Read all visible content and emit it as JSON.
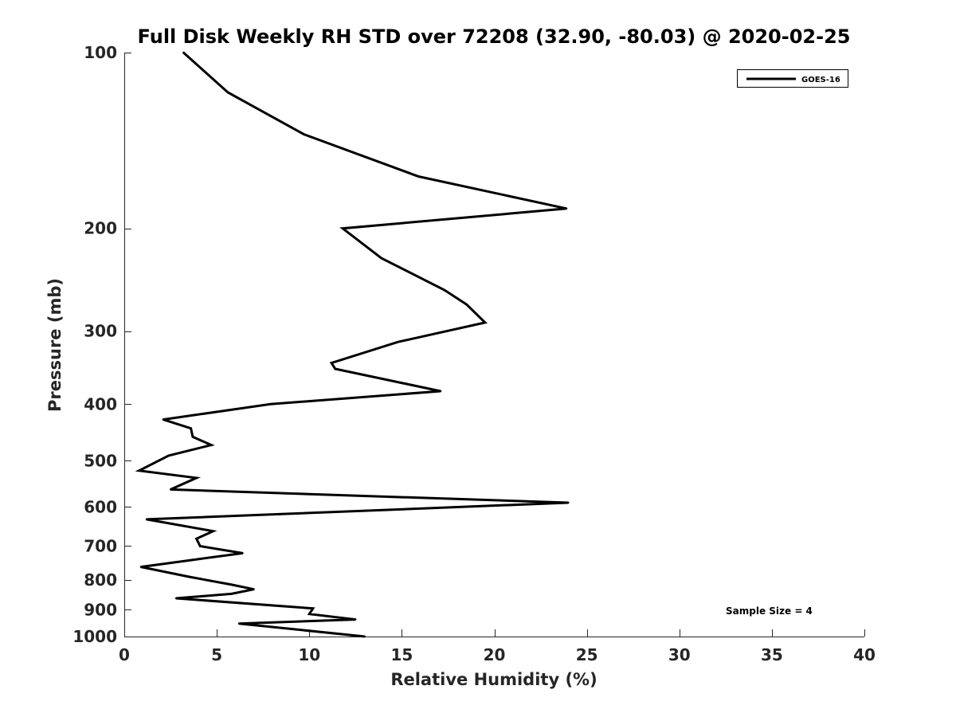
{
  "chart_data": {
    "type": "line",
    "title": "Full Disk Weekly RH STD over 72208 (32.90, -80.03) @ 2020-02-25",
    "xlabel": "Relative Humidity (%)",
    "ylabel": "Pressure (mb)",
    "xlim": [
      0,
      40
    ],
    "ylim": [
      1000,
      100
    ],
    "yscale": "log",
    "yreversed": true,
    "grid": false,
    "legend_position": "top-right",
    "x_ticks": [
      "0",
      "5",
      "10",
      "15",
      "20",
      "25",
      "30",
      "35",
      "40"
    ],
    "y_ticks": [
      "100",
      "200",
      "300",
      "400",
      "500",
      "600",
      "700",
      "800",
      "900",
      "1000"
    ],
    "annotation": "Sample Size = 4",
    "colors": {
      "series": "#000000",
      "axis": "#262626"
    },
    "series": [
      {
        "name": "GOES-16",
        "x": [
          3.2,
          5.6,
          9.7,
          15.9,
          23.9,
          11.8,
          13.9,
          17.3,
          18.5,
          19.5,
          14.8,
          11.2,
          11.4,
          17.1,
          7.9,
          2.1,
          3.6,
          3.7,
          4.7,
          2.4,
          0.8,
          3.9,
          2.5,
          24.0,
          1.2,
          4.8,
          3.9,
          4.1,
          6.4,
          3.6,
          0.9,
          3.5,
          5.8,
          7.0,
          5.8,
          2.8,
          10.2,
          10.0,
          12.5,
          6.2,
          13.0
        ],
        "y": [
          100,
          117,
          138,
          163,
          185,
          200,
          225,
          255,
          270,
          290,
          313,
          340,
          348,
          380,
          400,
          425,
          440,
          455,
          470,
          490,
          520,
          535,
          560,
          590,
          630,
          660,
          680,
          700,
          720,
          740,
          760,
          790,
          815,
          830,
          845,
          860,
          895,
          915,
          935,
          950,
          1000
        ]
      }
    ]
  }
}
